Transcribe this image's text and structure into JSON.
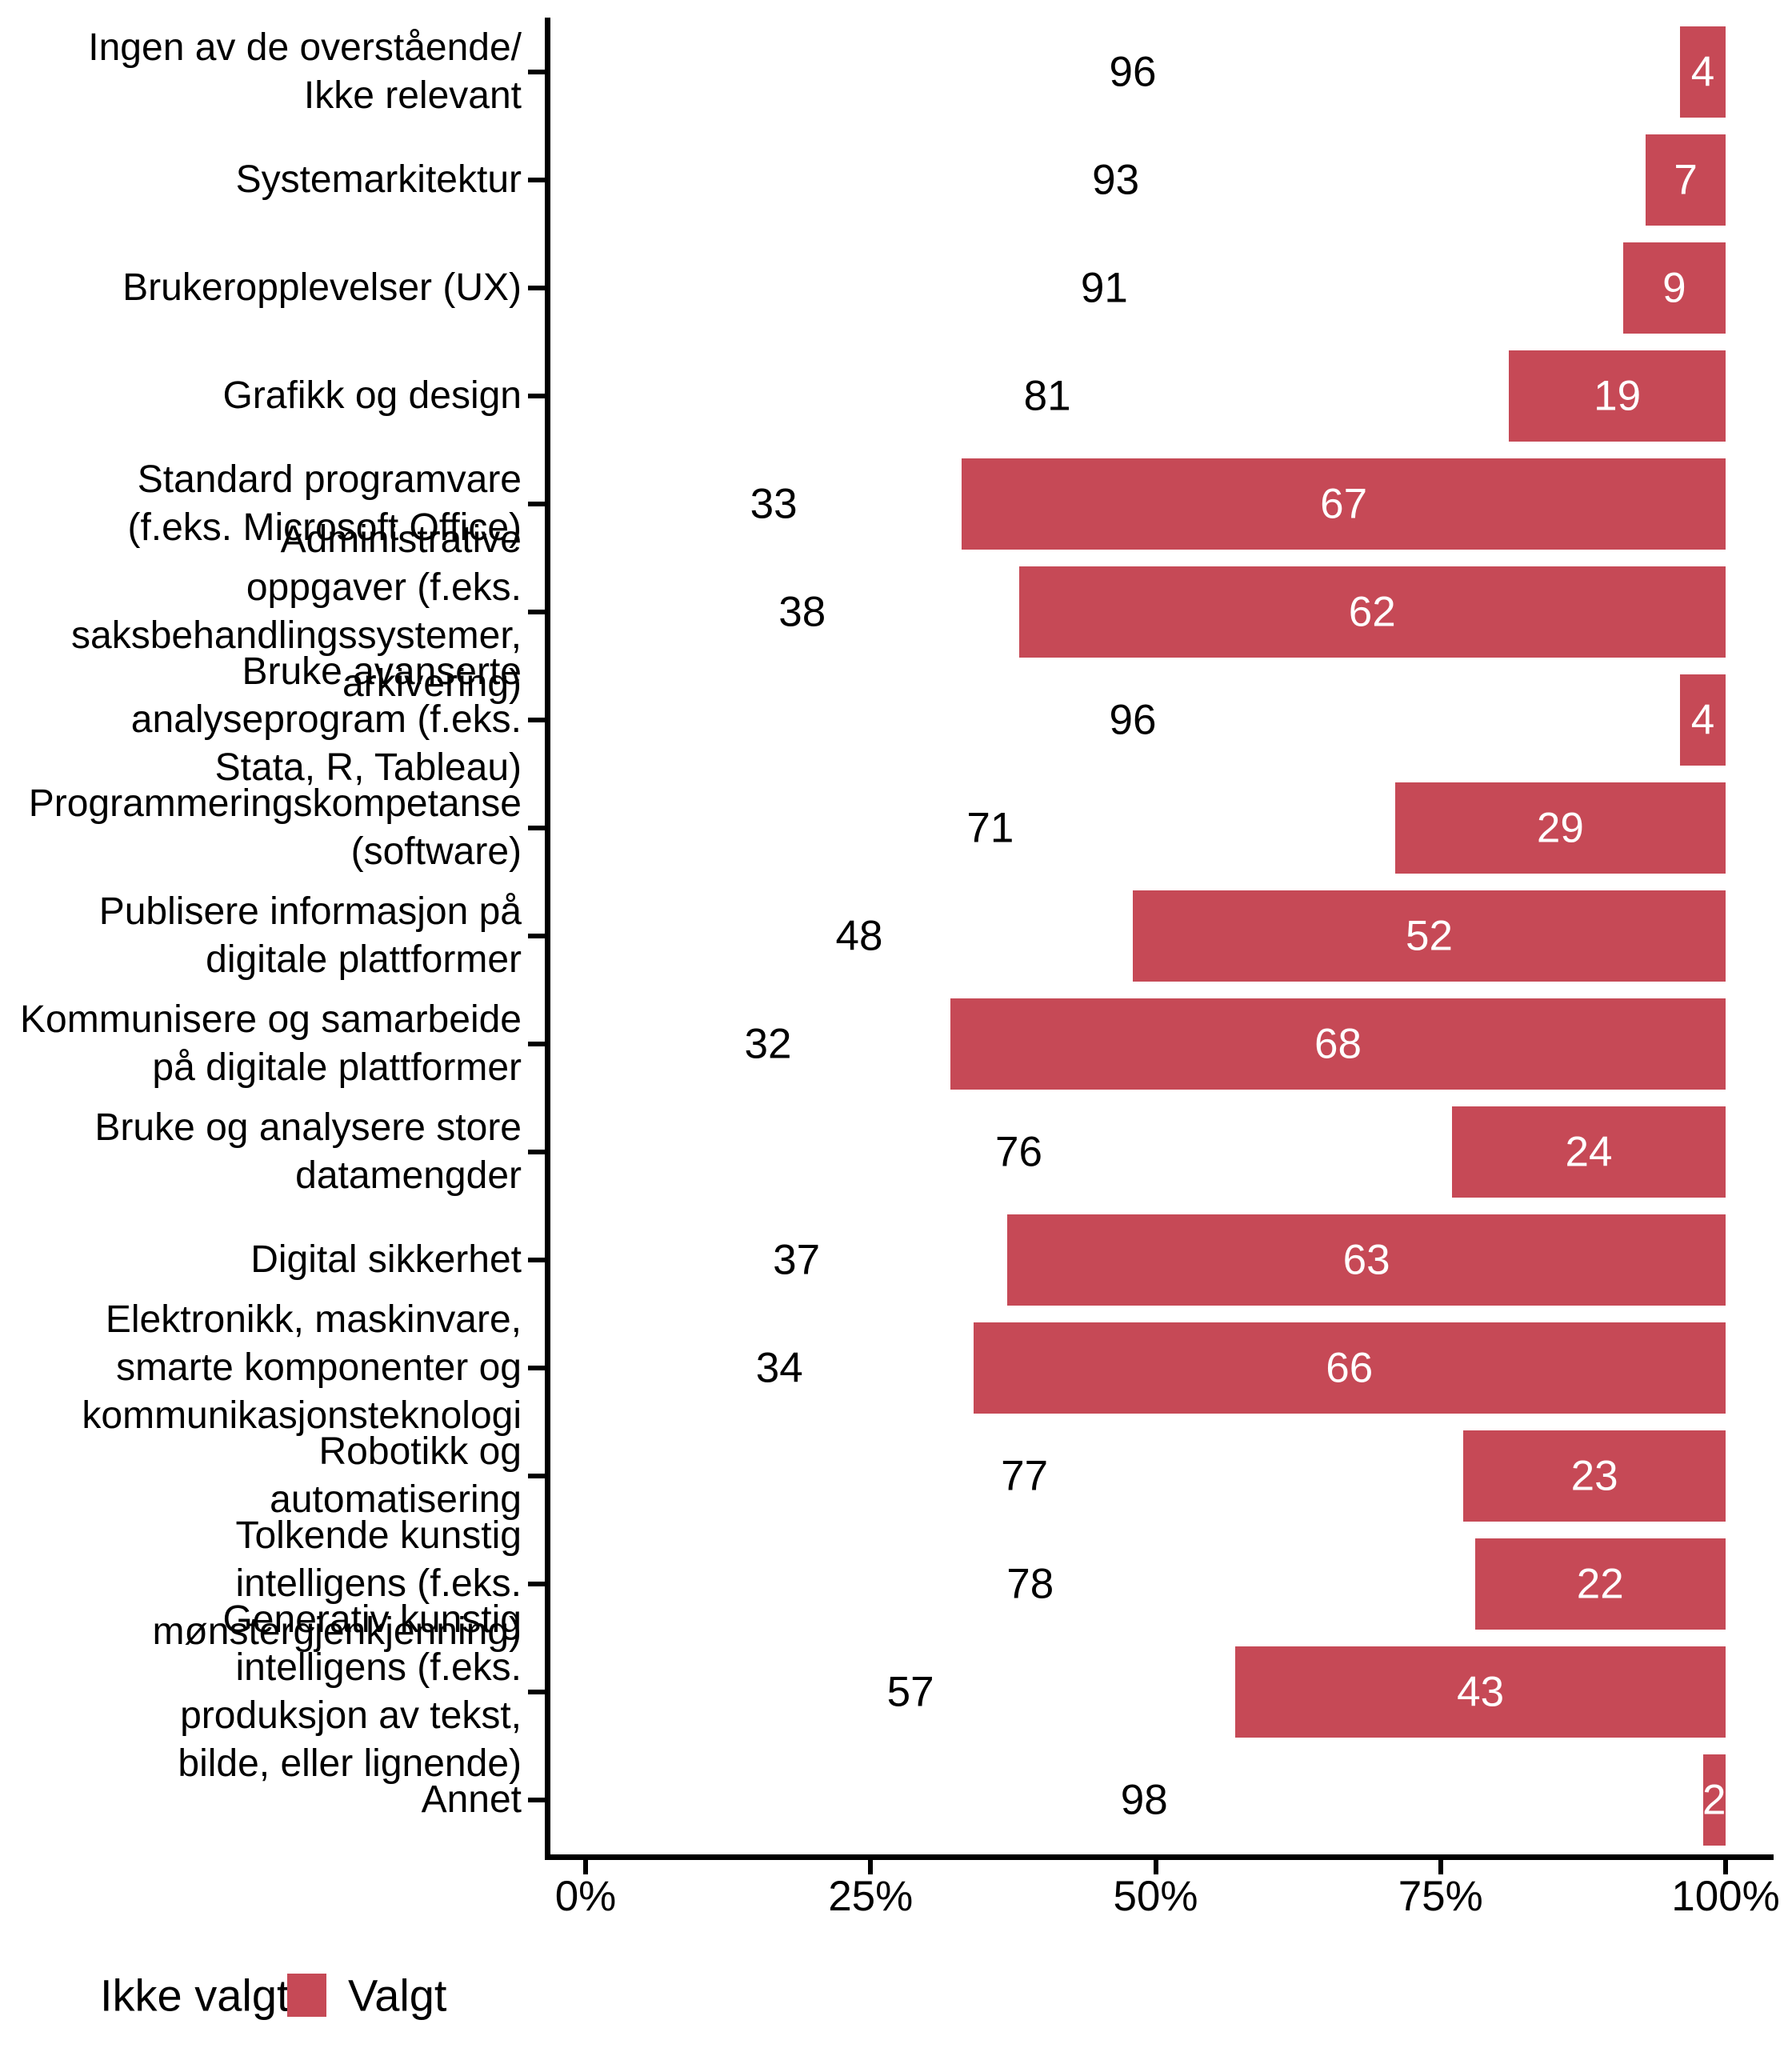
{
  "chart_data": {
    "type": "bar",
    "orientation": "horizontal",
    "stacked": true,
    "unit": "percent",
    "title": "",
    "xlabel": "",
    "ylabel": "",
    "xlim": [
      0,
      100
    ],
    "grid": false,
    "legend_position": "bottom-left",
    "categories": [
      "Ingen av de overstående/\nIkke relevant",
      "Systemarkitektur",
      "Brukeropplevelser (UX)",
      "Grafikk og design",
      "Standard programvare\n(f.eks. Microsoft Office)",
      "Administrative\noppgaver (f.eks.\nsaksbehandlingssystemer,\narkivering)",
      "Bruke avanserte\nanalyseprogram (f.eks.\nStata, R, Tableau)",
      "Programmeringskompetanse\n(software)",
      "Publisere informasjon på\ndigitale plattformer",
      "Kommunisere og samarbeide\npå digitale plattformer",
      "Bruke og analysere store\ndatamengder",
      "Digital sikkerhet",
      "Elektronikk, maskinvare,\nsmarte komponenter og\nkommunikasjonsteknologi",
      "Robotikk og\nautomatisering",
      "Tolkende kunstig\nintelligens (f.eks.\nmønstergjenkjenning)",
      "Generativ kunstig\nintelligens (f.eks.\nproduksjon av tekst,\nbilde, eller lignende)",
      "Annet"
    ],
    "series": [
      {
        "name": "Ikke valgt",
        "color": "#FFFFFF",
        "label_color": "#000000",
        "values": [
          96,
          93,
          91,
          81,
          33,
          38,
          96,
          71,
          48,
          32,
          76,
          37,
          34,
          77,
          78,
          57,
          98
        ]
      },
      {
        "name": "Valgt",
        "color": "#C64956",
        "label_color": "#FFFFFF",
        "values": [
          4,
          7,
          9,
          19,
          67,
          62,
          4,
          29,
          52,
          68,
          24,
          63,
          66,
          23,
          22,
          43,
          2
        ]
      }
    ],
    "x_ticks": [
      {
        "label": "0%",
        "value": 0
      },
      {
        "label": "25%",
        "value": 25
      },
      {
        "label": "50%",
        "value": 50
      },
      {
        "label": "75%",
        "value": 75
      },
      {
        "label": "100%",
        "value": 100
      }
    ]
  },
  "legend": {
    "items": [
      {
        "label": "Ikke valgt",
        "color": "#FFFFFF"
      },
      {
        "label": "Valgt",
        "color": "#C64956"
      }
    ]
  },
  "colors": {
    "selected_bar": "#C64956",
    "not_selected_bar": "#FFFFFF",
    "axis": "#000000",
    "background": "#FFFFFF"
  }
}
